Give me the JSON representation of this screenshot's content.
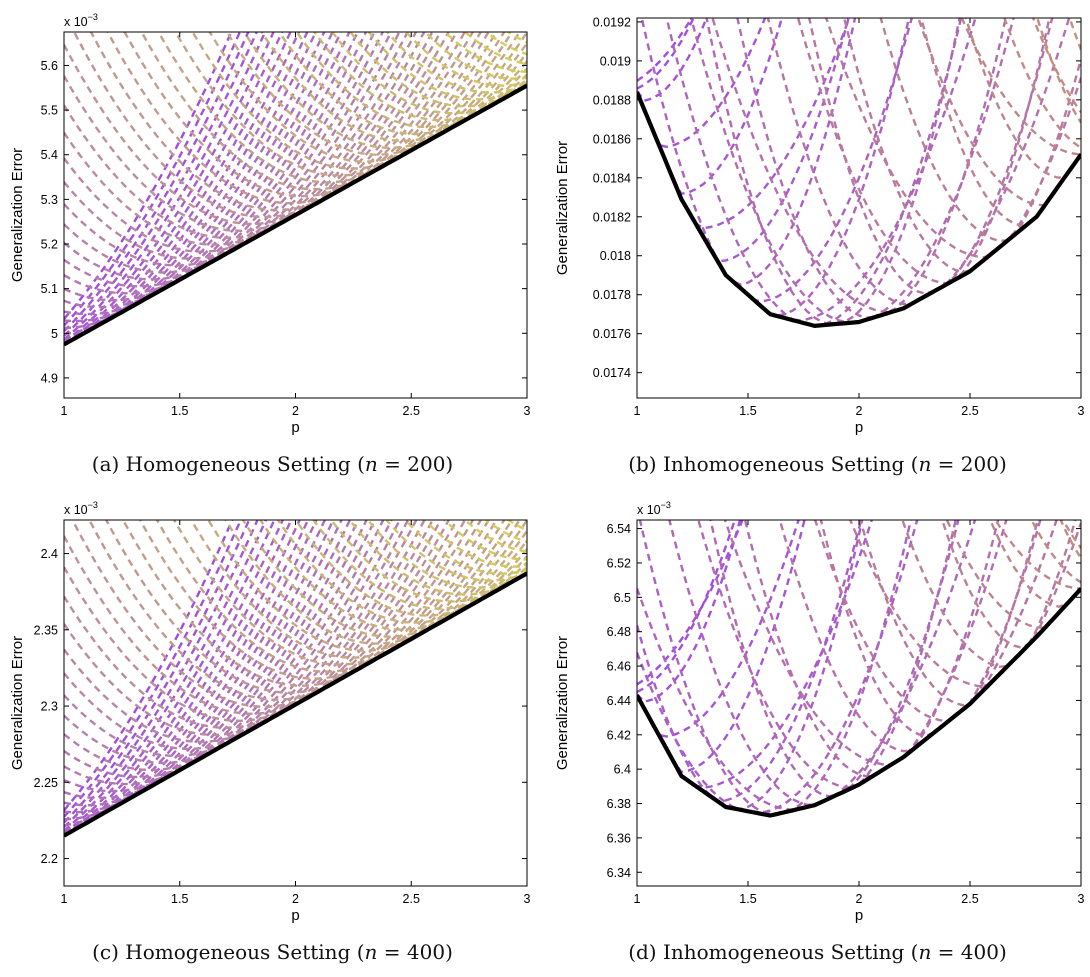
{
  "chart_data": [
    {
      "type": "line",
      "caption": {
        "prefix": "(a) Homogeneous Setting (",
        "var": "n",
        "eq": " = 200)"
      },
      "xlabel": "p",
      "ylabel": "Generalization Error",
      "exponent_label": "x 10",
      "exponent_sup": "−3",
      "xlim": [
        1,
        3
      ],
      "ylim": [
        4.855,
        5.675
      ],
      "xticks": [
        "1",
        "1.5",
        "2",
        "2.5",
        "3"
      ],
      "yticks": [
        "4.9",
        "5",
        "5.1",
        "5.2",
        "5.3",
        "5.4",
        "5.5",
        "5.6"
      ],
      "shape": "linear",
      "frontier": {
        "x": [
          1,
          1.5,
          2,
          2.5,
          3
        ],
        "y": [
          4.975,
          5.12,
          5.265,
          5.41,
          5.555
        ],
        "color": "#000000"
      },
      "dashed_family": {
        "count": 55,
        "color_start": "#a24be0",
        "color_end": "#d8d850"
      }
    },
    {
      "type": "line",
      "caption": {
        "prefix": "(b) Inhomogeneous Setting (",
        "var": "n",
        "eq": " = 200)"
      },
      "xlabel": "p",
      "ylabel": "Generalization Error",
      "exponent_label": "",
      "exponent_sup": "",
      "xlim": [
        1,
        3
      ],
      "ylim": [
        0.01727,
        0.01922
      ],
      "xticks": [
        "1",
        "1.5",
        "2",
        "2.5",
        "3"
      ],
      "yticks": [
        "0.0174",
        "0.0176",
        "0.0178",
        "0.018",
        "0.0182",
        "0.0184",
        "0.0186",
        "0.0188",
        "0.019",
        "0.0192"
      ],
      "shape": "quadratic",
      "frontier": {
        "x": [
          1,
          1.2,
          1.4,
          1.6,
          1.8,
          2,
          2.2,
          2.5,
          2.8,
          3
        ],
        "y": [
          0.01884,
          0.01829,
          0.0179,
          0.0177,
          0.01764,
          0.01766,
          0.01773,
          0.01792,
          0.0182,
          0.01852
        ],
        "color": "#000000"
      },
      "dashed_family": {
        "count": 30,
        "color_start": "#a24be0",
        "color_end": "#d4b050"
      }
    },
    {
      "type": "line",
      "caption": {
        "prefix": "(c) Homogeneous Setting (",
        "var": "n",
        "eq": " = 400)"
      },
      "xlabel": "p",
      "ylabel": "Generalization Error",
      "exponent_label": "x 10",
      "exponent_sup": "−3",
      "xlim": [
        1,
        3
      ],
      "ylim": [
        2.182,
        2.422
      ],
      "xticks": [
        "1",
        "1.5",
        "2",
        "2.5",
        "3"
      ],
      "yticks": [
        "2.2",
        "2.25",
        "2.3",
        "2.35",
        "2.4"
      ],
      "shape": "linear",
      "frontier": {
        "x": [
          1,
          1.5,
          2,
          2.5,
          3
        ],
        "y": [
          2.215,
          2.258,
          2.301,
          2.344,
          2.387
        ],
        "color": "#000000"
      },
      "dashed_family": {
        "count": 55,
        "color_start": "#a24be0",
        "color_end": "#d8d850"
      }
    },
    {
      "type": "line",
      "caption": {
        "prefix": "(d) Inhomogeneous Setting (",
        "var": "n",
        "eq": " = 400)"
      },
      "xlabel": "p",
      "ylabel": "Generalization Error",
      "exponent_label": "x 10",
      "exponent_sup": "−3",
      "xlim": [
        1,
        3
      ],
      "ylim": [
        6.332,
        6.545
      ],
      "xticks": [
        "1",
        "1.5",
        "2",
        "2.5",
        "3"
      ],
      "yticks": [
        "6.34",
        "6.36",
        "6.38",
        "6.4",
        "6.42",
        "6.44",
        "6.46",
        "6.48",
        "6.5",
        "6.52",
        "6.54"
      ],
      "shape": "quadratic",
      "frontier": {
        "x": [
          1,
          1.2,
          1.4,
          1.6,
          1.8,
          2,
          2.2,
          2.5,
          2.8,
          3
        ],
        "y": [
          6.443,
          6.396,
          6.378,
          6.373,
          6.379,
          6.391,
          6.407,
          6.438,
          6.477,
          6.505
        ],
        "color": "#000000"
      },
      "dashed_family": {
        "count": 30,
        "color_start": "#a24be0",
        "color_end": "#d4b050"
      }
    }
  ]
}
